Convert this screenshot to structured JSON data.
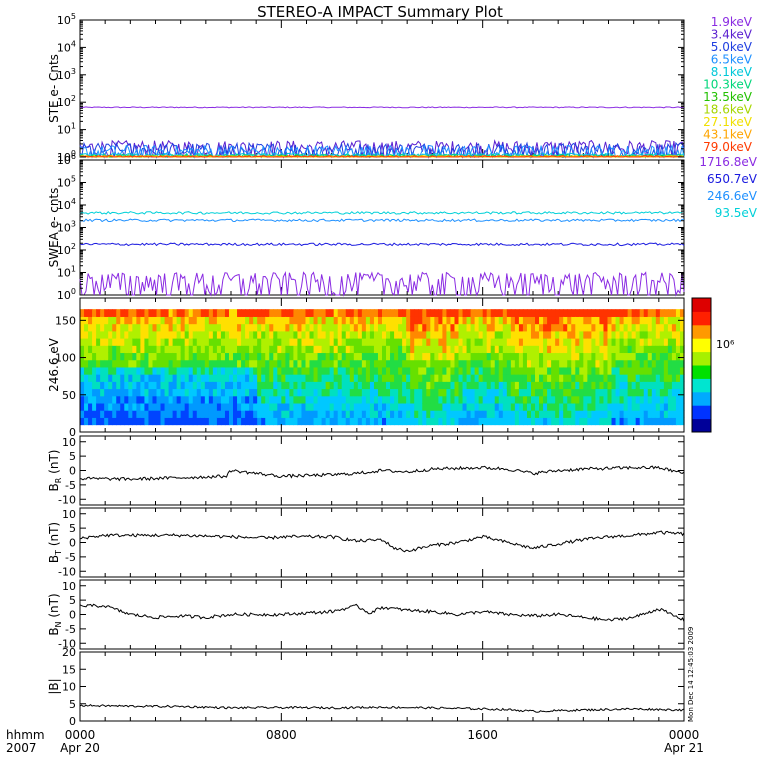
{
  "title": "STEREO-A IMPACT Summary Plot",
  "footer": {
    "hhmm": "hhmm",
    "year": "2007",
    "x_ticks": [
      {
        "label": "0000",
        "sub": "Apr 20",
        "hour": 0
      },
      {
        "label": "0800",
        "sub": "",
        "hour": 8
      },
      {
        "label": "1600",
        "sub": "",
        "hour": 16
      },
      {
        "label": "0000",
        "sub": "Apr 21",
        "hour": 24
      }
    ],
    "timestamp": "Mon Dec 14 12:45:03 2009"
  },
  "colors": {
    "ste": [
      "#8a2be2",
      "#5a1fd0",
      "#1f3fe0",
      "#1e90ff",
      "#00c8d8",
      "#00d67a",
      "#22c000",
      "#a5d600",
      "#f0e000",
      "#ffa500",
      "#ff3a00"
    ],
    "swea": [
      "#8a2be2",
      "#1a1adf",
      "#1e90ff",
      "#00d0d8"
    ],
    "colorbar": [
      "#000099",
      "#0033ff",
      "#00aaff",
      "#00e5d0",
      "#00e000",
      "#a6f000",
      "#ffff00",
      "#ff9900",
      "#ff2000",
      "#dd0000"
    ]
  },
  "chart_data": [
    {
      "type": "line",
      "id": "ste",
      "ylabel": "STE e- Cnts",
      "yscale": "log",
      "ylim": [
        1,
        100000
      ],
      "ytick_exponents": [
        0,
        1,
        2,
        3,
        4,
        5
      ],
      "xlim_hours": [
        0,
        24
      ],
      "series": [
        {
          "name": "1.9keV",
          "level": 65
        },
        {
          "name": "3.4keV",
          "level": 2.2
        },
        {
          "name": "5.0keV",
          "level": 1.8
        },
        {
          "name": "6.5keV",
          "level": 1.5
        },
        {
          "name": "8.1keV",
          "level": 1.2
        },
        {
          "name": "10.3keV",
          "level": 1.1
        },
        {
          "name": "13.5keV",
          "level": 1.0
        },
        {
          "name": "18.6keV",
          "level": 1.0
        },
        {
          "name": "27.1keV",
          "level": 1.0
        },
        {
          "name": "43.1keV",
          "level": 1.0
        },
        {
          "name": "79.0keV",
          "level": 1.0
        }
      ]
    },
    {
      "type": "line",
      "id": "swea",
      "ylabel": "SWEA e- cnts",
      "yscale": "log",
      "ylim": [
        1,
        1000000
      ],
      "ytick_exponents": [
        0,
        1,
        2,
        3,
        4,
        5,
        6
      ],
      "xlim_hours": [
        0,
        24
      ],
      "series": [
        {
          "name": "1716.8eV",
          "level": 4
        },
        {
          "name": "650.7eV",
          "level": 180
        },
        {
          "name": "246.6eV",
          "level": 2100
        },
        {
          "name": "93.5eV",
          "level": 4500
        }
      ]
    },
    {
      "type": "heatmap",
      "id": "pad",
      "ylabel": "246.6 eV",
      "ylim": [
        0,
        180
      ],
      "yticks": [
        0,
        50,
        100,
        150
      ],
      "xlim_hours": [
        0,
        24
      ],
      "colorbar_label": "10⁶"
    },
    {
      "type": "line",
      "id": "br",
      "ylabel_main": "B",
      "ylabel_sub": "R",
      "ylabel_unit": "(nT)",
      "ylim": [
        -12,
        12
      ],
      "yticks": [
        -10,
        -5,
        0,
        5,
        10
      ],
      "xlim_hours": [
        0,
        24
      ],
      "x": [
        0,
        2,
        4,
        5.8,
        6,
        8,
        10,
        11,
        12,
        13,
        14,
        16,
        17,
        18,
        19,
        20,
        22,
        23,
        24
      ],
      "values": [
        -2.8,
        -3,
        -2.5,
        -2,
        0,
        -2,
        -1.5,
        -1,
        0,
        -0.5,
        0.5,
        1,
        0.5,
        -1,
        0,
        0.5,
        1,
        1,
        -1
      ]
    },
    {
      "type": "line",
      "id": "bt",
      "ylabel_main": "B",
      "ylabel_sub": "T",
      "ylabel_unit": "(nT)",
      "ylim": [
        -12,
        12
      ],
      "yticks": [
        -10,
        -5,
        0,
        5,
        10
      ],
      "xlim_hours": [
        0,
        24
      ],
      "x": [
        0,
        1,
        2,
        4,
        6,
        7.5,
        8,
        10,
        11,
        12,
        12.5,
        13,
        14,
        15,
        16,
        17,
        18,
        19,
        20,
        21,
        22,
        23,
        24
      ],
      "values": [
        1.5,
        2.5,
        2.5,
        2.5,
        2,
        1.5,
        2,
        2,
        0.5,
        1,
        -2,
        -3,
        -1,
        0,
        2,
        0,
        -2,
        -0.5,
        1,
        2,
        2.5,
        3.5,
        3
      ]
    },
    {
      "type": "line",
      "id": "bn",
      "ylabel_main": "B",
      "ylabel_sub": "N",
      "ylabel_unit": "(nT)",
      "ylim": [
        -12,
        12
      ],
      "yticks": [
        -10,
        -5,
        0,
        5,
        10
      ],
      "xlim_hours": [
        0,
        24
      ],
      "x": [
        0,
        1,
        2,
        3,
        4,
        5,
        6,
        8,
        10,
        11,
        11.5,
        12,
        13,
        14,
        15,
        16,
        17,
        18,
        19,
        20,
        21,
        22,
        23,
        24
      ],
      "values": [
        3,
        3,
        0,
        -1,
        -0.5,
        -1,
        0,
        0,
        1,
        3,
        0.5,
        2.5,
        1.5,
        1,
        0,
        1,
        0,
        -0.5,
        0,
        -1,
        -2,
        -1,
        2,
        -2
      ]
    },
    {
      "type": "line",
      "id": "bmag",
      "ylabel_main": "|B|",
      "ylabel_unit": "(nT)",
      "ylim": [
        0,
        20
      ],
      "yticks": [
        0,
        5,
        10,
        15,
        20
      ],
      "xlim_hours": [
        0,
        24
      ],
      "x": [
        0,
        2,
        4,
        6,
        8,
        10,
        12,
        14,
        16,
        17,
        18,
        20,
        22,
        24
      ],
      "values": [
        4.5,
        4.3,
        4.2,
        3.8,
        3.9,
        3.8,
        4,
        3.8,
        3.5,
        3.3,
        2.8,
        3.2,
        3.5,
        3.2
      ]
    }
  ]
}
